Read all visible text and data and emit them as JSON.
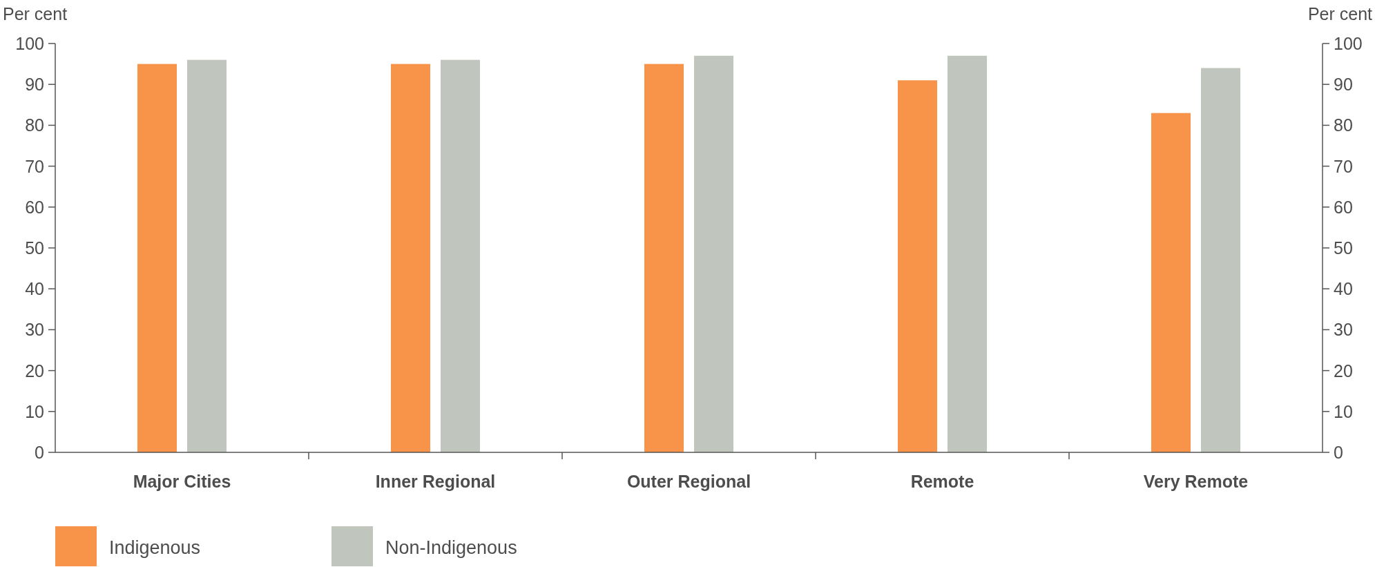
{
  "chart_data": {
    "type": "bar",
    "ylabel": "Per cent",
    "y2label": "Per cent",
    "categories": [
      "Major Cities",
      "Inner Regional",
      "Outer Regional",
      "Remote",
      "Very Remote"
    ],
    "series": [
      {
        "name": "Indigenous",
        "color": "#f7944a",
        "values": [
          95,
          95,
          95,
          91,
          83
        ]
      },
      {
        "name": "Non-Indigenous",
        "color": "#c0c5bd",
        "values": [
          96,
          96,
          97,
          97,
          94
        ]
      }
    ],
    "ylim": [
      0,
      100
    ],
    "yticks": [
      0,
      10,
      20,
      30,
      40,
      50,
      60,
      70,
      80,
      90,
      100
    ],
    "y2lim": [
      0,
      100
    ],
    "y2ticks": [
      0,
      10,
      20,
      30,
      40,
      50,
      60,
      70,
      80,
      90,
      100
    ],
    "grid": false,
    "legend": "bottom"
  }
}
